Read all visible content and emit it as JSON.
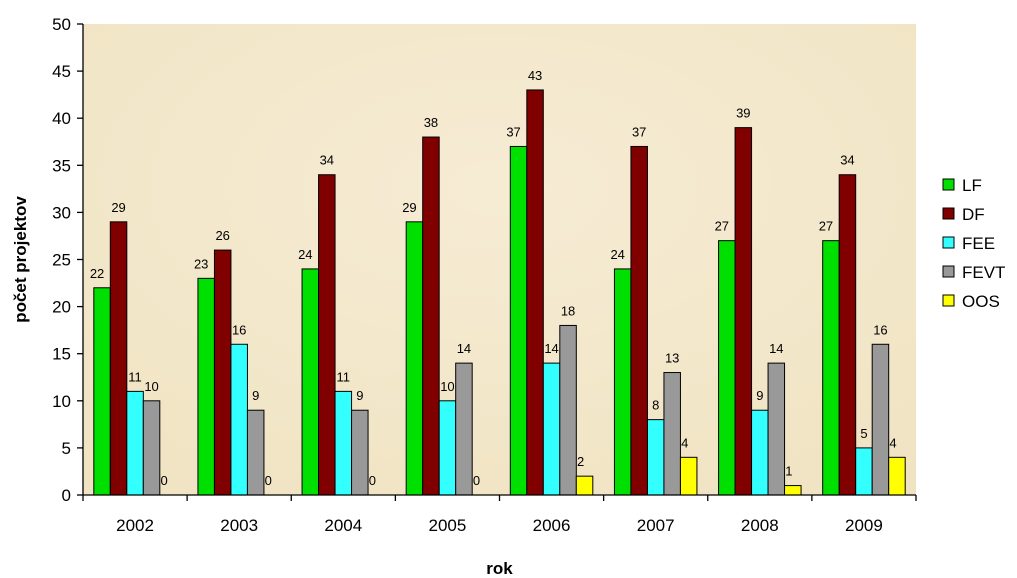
{
  "chart_data": {
    "type": "bar",
    "title": "",
    "xlabel": "rok",
    "ylabel": "počet projektov",
    "ylim": [
      0,
      50
    ],
    "yticks": [
      0,
      5,
      10,
      15,
      20,
      25,
      30,
      35,
      40,
      45,
      50
    ],
    "grid": false,
    "legend_position": "right",
    "plot_background": "#f3e7c9",
    "categories": [
      "2002",
      "2003",
      "2004",
      "2005",
      "2006",
      "2007",
      "2008",
      "2009"
    ],
    "series": [
      {
        "name": "LF",
        "color": "#00e000",
        "values": [
          22,
          23,
          24,
          29,
          37,
          24,
          27,
          27
        ]
      },
      {
        "name": "DF",
        "color": "#800000",
        "values": [
          29,
          26,
          34,
          38,
          43,
          37,
          39,
          34
        ]
      },
      {
        "name": "FEE",
        "color": "#33ffff",
        "values": [
          11,
          16,
          11,
          10,
          14,
          8,
          9,
          5
        ]
      },
      {
        "name": "FEVT",
        "color": "#999999",
        "values": [
          10,
          9,
          9,
          14,
          18,
          13,
          14,
          16
        ]
      },
      {
        "name": "OOS",
        "color": "#ffff00",
        "values": [
          0,
          0,
          0,
          0,
          2,
          4,
          1,
          4
        ]
      }
    ]
  }
}
